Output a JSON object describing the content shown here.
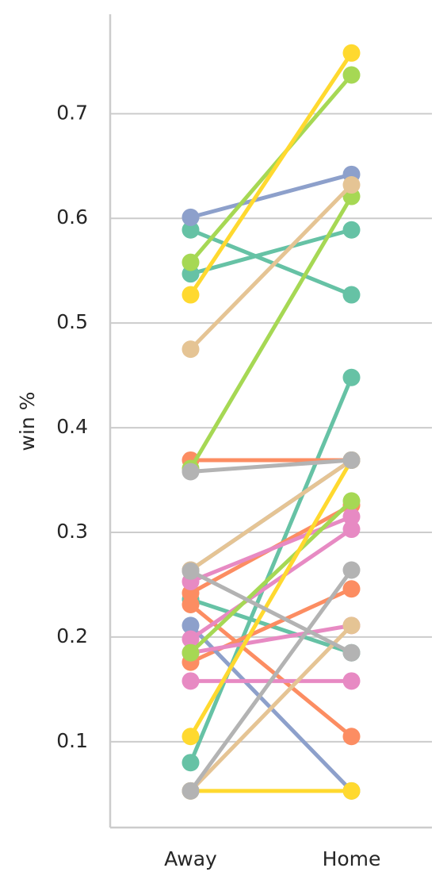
{
  "chart_data": {
    "type": "pointplot",
    "y_label": "win %",
    "categories": [
      "Away",
      "Home"
    ],
    "ylim": [
      0.018,
      0.795
    ],
    "yticks": [
      0.1,
      0.2,
      0.3,
      0.4,
      0.5,
      0.6,
      0.7
    ],
    "grid": true,
    "series": [
      {
        "color": "#66c2a5",
        "values": [
          0.589,
          0.527
        ]
      },
      {
        "color": "#66c2a5",
        "values": [
          0.547,
          0.589
        ]
      },
      {
        "color": "#66c2a5",
        "values": [
          0.236,
          0.185
        ]
      },
      {
        "color": "#66c2a5",
        "values": [
          0.08,
          0.448
        ]
      },
      {
        "color": "#fc8d62",
        "values": [
          0.369,
          0.369
        ]
      },
      {
        "color": "#fc8d62",
        "values": [
          0.242,
          0.326
        ]
      },
      {
        "color": "#fc8d62",
        "values": [
          0.231,
          0.105
        ]
      },
      {
        "color": "#fc8d62",
        "values": [
          0.176,
          0.246
        ]
      },
      {
        "color": "#8da0cb",
        "values": [
          0.601,
          0.642
        ]
      },
      {
        "color": "#8da0cb",
        "values": [
          0.264,
          0.369
        ]
      },
      {
        "color": "#8da0cb",
        "values": [
          0.211,
          0.053
        ]
      },
      {
        "color": "#e78ac3",
        "values": [
          0.253,
          0.315
        ]
      },
      {
        "color": "#e78ac3",
        "values": [
          0.198,
          0.303
        ]
      },
      {
        "color": "#e78ac3",
        "values": [
          0.185,
          0.211
        ]
      },
      {
        "color": "#e78ac3",
        "values": [
          0.158,
          0.158
        ]
      },
      {
        "color": "#a6d854",
        "values": [
          0.558,
          0.737
        ]
      },
      {
        "color": "#a6d854",
        "values": [
          0.361,
          0.621
        ]
      },
      {
        "color": "#a6d854",
        "values": [
          0.185,
          0.33
        ]
      },
      {
        "color": "#ffd92f",
        "values": [
          0.527,
          0.758
        ]
      },
      {
        "color": "#ffd92f",
        "values": [
          0.105,
          0.369
        ]
      },
      {
        "color": "#ffd92f",
        "values": [
          0.053,
          0.053
        ]
      },
      {
        "color": "#e5c494",
        "values": [
          0.475,
          0.632
        ]
      },
      {
        "color": "#e5c494",
        "values": [
          0.264,
          0.369
        ]
      },
      {
        "color": "#e5c494",
        "values": [
          0.053,
          0.211
        ]
      },
      {
        "color": "#b3b3b3",
        "values": [
          0.358,
          0.369
        ]
      },
      {
        "color": "#b3b3b3",
        "values": [
          0.263,
          0.185
        ]
      },
      {
        "color": "#b3b3b3",
        "values": [
          0.053,
          0.264
        ]
      }
    ]
  }
}
